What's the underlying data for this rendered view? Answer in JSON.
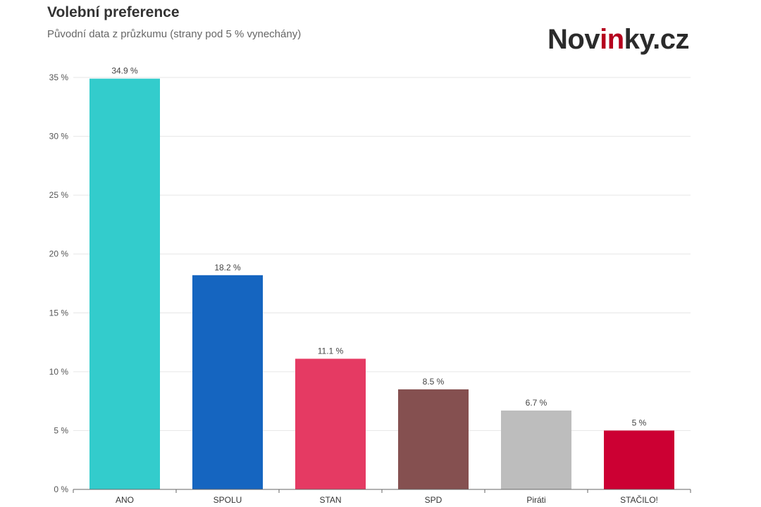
{
  "brand": {
    "logo_prefix": "Nov",
    "logo_accent": "in",
    "logo_suffix": "ky.cz",
    "accent_color": "#b5001e"
  },
  "chart_data": {
    "type": "bar",
    "title": "Volební preference",
    "subtitle": "Původní data z průzkumu (strany pod 5 % vynechány)",
    "categories": [
      "ANO",
      "SPOLU",
      "STAN",
      "SPD",
      "Piráti",
      "STAČILO!"
    ],
    "values": [
      34.9,
      18.2,
      11.1,
      8.5,
      6.7,
      5
    ],
    "data_labels": [
      "34.9 %",
      "18.2 %",
      "11.1 %",
      "8.5 %",
      "6.7 %",
      "5 %"
    ],
    "colors": [
      "#33cccc",
      "#1565c0",
      "#e53a63",
      "#855050",
      "#bdbdbd",
      "#cc0033"
    ],
    "ylim": [
      0,
      35
    ],
    "yticks": [
      0,
      5,
      10,
      15,
      20,
      25,
      30,
      35
    ],
    "ytick_labels": [
      "0 %",
      "5 %",
      "10 %",
      "15 %",
      "20 %",
      "25 %",
      "30 %",
      "35 %"
    ],
    "grid": true,
    "legend": "none"
  }
}
